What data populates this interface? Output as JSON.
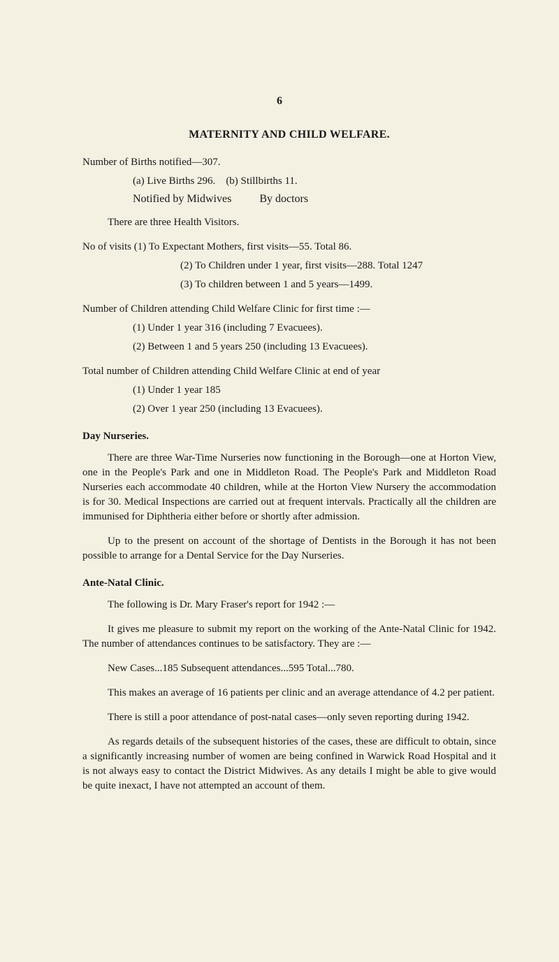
{
  "page_number": "6",
  "title": "MATERNITY AND CHILD WELFARE.",
  "p1": "Number of Births notified—307.",
  "p2a": "(a) Live Births 296.",
  "p2b": "(b) Stillbirths 11.",
  "p3a": "Notified by Midwives",
  "p3b": "By doctors",
  "p4": "There are three Health Visitors.",
  "p5": "No of visits (1) To Expectant Mothers, first visits—55.    Total 86.",
  "p6": "(2) To Children under 1 year, first visits—288. Total 1247",
  "p7": "(3) To children between 1 and 5 years—1499.",
  "p8": "Number of Children attending Child Welfare Clinic for first time :—",
  "p9": "(1)   Under 1 year 316 (including 7 Evacuees).",
  "p10": "(2)   Between 1 and 5 years 250 (including 13 Evacuees).",
  "p11": "Total number of Children attending Child Welfare Clinic at end of year",
  "p12": "(1)   Under 1 year 185",
  "p13": "(2)   Over 1 year 250 (including 13 Evacuees).",
  "day_heading": "Day Nurseries.",
  "day_p1": "There are three War-Time Nurseries now functioning in the Borough—one at Horton View, one in the People's Park and one in Middleton Road. The People's Park and Middleton Road Nurseries each accommodate 40 children, while at the Horton View Nursery the accommodation is for 30. Medical Inspections are carried out at frequent intervals. Practically all the children are immunised for Diphtheria either before or shortly after admission.",
  "day_p2": "Up to the present on account of the shortage of Dentists in the Borough it has not been possible to arrange for a Dental Service for the Day Nurseries.",
  "ante_heading": "Ante-Natal Clinic.",
  "ante_p1": "The following is Dr. Mary Fraser's report for 1942 :—",
  "ante_p2": "It gives me pleasure to submit my report on the working of the Ante-Natal Clinic for 1942. The number of attendances continues to be satisfactory. They are :—",
  "ante_p3": "New Cases...185     Subsequent attendances...595     Total...780.",
  "ante_p4": "This makes an average of 16 patients per clinic and an average attendance of 4.2 per patient.",
  "ante_p5": "There is still a poor attendance of post-natal cases—only seven reporting during 1942.",
  "ante_p6": "As regards details of the subsequent histories of the cases, these are difficult to obtain, since a significantly increasing number of women are being confined in Warwick Road Hospital and it is not always easy to contact the District Midwives. As any details I might be able to give would be quite inexact, I have not attempted an account of them."
}
